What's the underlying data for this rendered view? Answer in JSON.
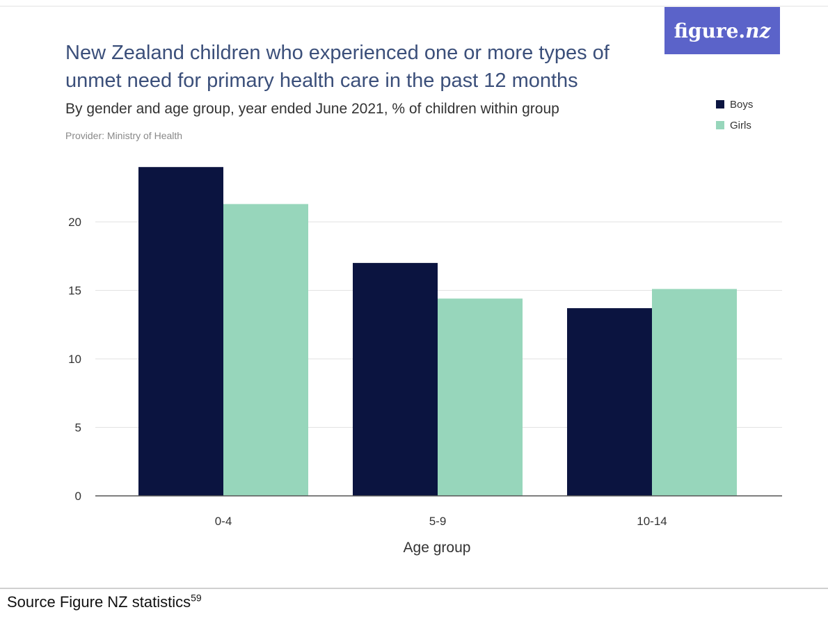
{
  "logo": {
    "brand": "figure.",
    "brand_suffix": "nz"
  },
  "source": {
    "text": "Source Figure NZ statistics",
    "footnote": "59"
  },
  "colors": {
    "boys": "#0b1440",
    "girls": "#97d6bb",
    "title": "#3b4f7a",
    "logo_bg": "#5b63c9"
  },
  "chart_data": {
    "type": "bar",
    "title": "New Zealand children who experienced one or more types of unmet need for primary health care in the past 12 months",
    "subtitle": "By gender and age group, year ended June 2021, % of children within group",
    "provider": "Provider: Ministry of Health",
    "xlabel": "Age group",
    "ylabel": "",
    "categories": [
      "0-4",
      "5-9",
      "10-14"
    ],
    "series": [
      {
        "name": "Boys",
        "values": [
          24.0,
          17.0,
          13.7
        ]
      },
      {
        "name": "Girls",
        "values": [
          21.3,
          14.4,
          15.1
        ]
      }
    ],
    "yticks": [
      "0",
      "5",
      "10",
      "15",
      "20"
    ],
    "ylim": [
      0,
      25
    ],
    "grid": true,
    "legend": "top-right"
  }
}
